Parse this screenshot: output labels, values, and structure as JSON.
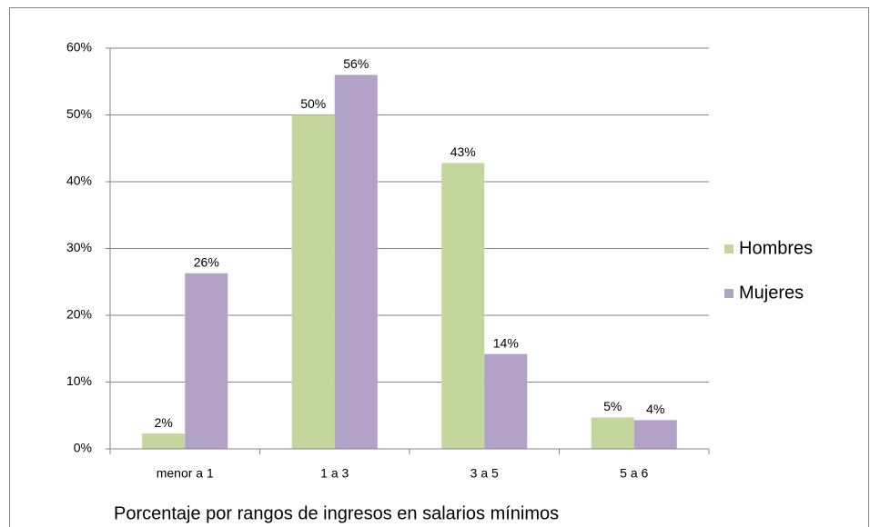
{
  "chart_data": {
    "type": "bar",
    "x_label": "Porcentaje por rangos de ingresos en salarios mínimos",
    "categories": [
      "menor a 1",
      "1 a 3",
      "3 a 5",
      "5 a 6"
    ],
    "series": [
      {
        "name": "Hombres",
        "color": "#c3d69b",
        "values": [
          2.3,
          50,
          42.8,
          4.7
        ],
        "value_labels": [
          "2%",
          "50%",
          "43%",
          "5%"
        ]
      },
      {
        "name": "Mujeres",
        "color": "#b3a2c7",
        "values": [
          26.3,
          56,
          14.2,
          4.3
        ],
        "value_labels": [
          "26%",
          "56%",
          "14%",
          "4%"
        ]
      }
    ],
    "ylim": [
      0,
      60
    ],
    "yticks": [
      {
        "value": 0,
        "label": "0%"
      },
      {
        "value": 10,
        "label": "10%"
      },
      {
        "value": 20,
        "label": "20%"
      },
      {
        "value": 30,
        "label": "30%"
      },
      {
        "value": 40,
        "label": "40%"
      },
      {
        "value": 50,
        "label": "50%"
      },
      {
        "value": 60,
        "label": "60%"
      }
    ],
    "grid": true,
    "legend": "right"
  }
}
